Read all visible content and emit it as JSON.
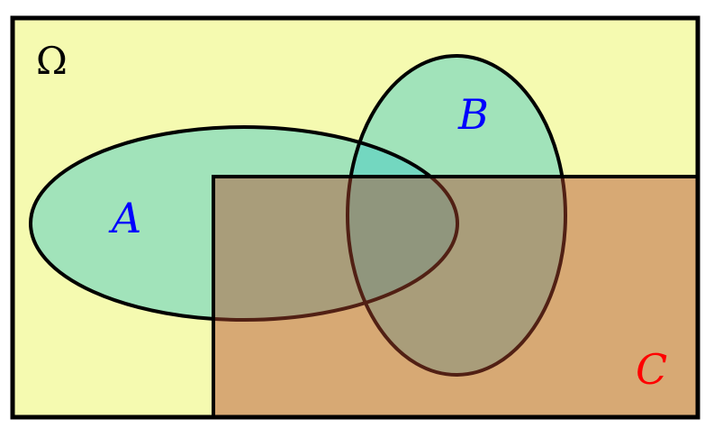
{
  "diagram": {
    "universe": {
      "label": "Ω",
      "fill": "#F5FAB0",
      "label_color": "#000000"
    },
    "sets": [
      {
        "id": "A",
        "label": "A",
        "shape": "ellipse",
        "fill": "#3CC8C8",
        "fill_opacity": 0.45,
        "label_color": "#0000FF"
      },
      {
        "id": "B",
        "label": "B",
        "shape": "ellipse",
        "fill": "#3CC8C8",
        "fill_opacity": 0.45,
        "label_color": "#0000FF"
      },
      {
        "id": "C",
        "label": "C",
        "shape": "rectangle",
        "fill": "#B4462D",
        "fill_opacity": 0.45,
        "label_color": "#FF0000"
      }
    ],
    "outline_color": "#000000"
  }
}
